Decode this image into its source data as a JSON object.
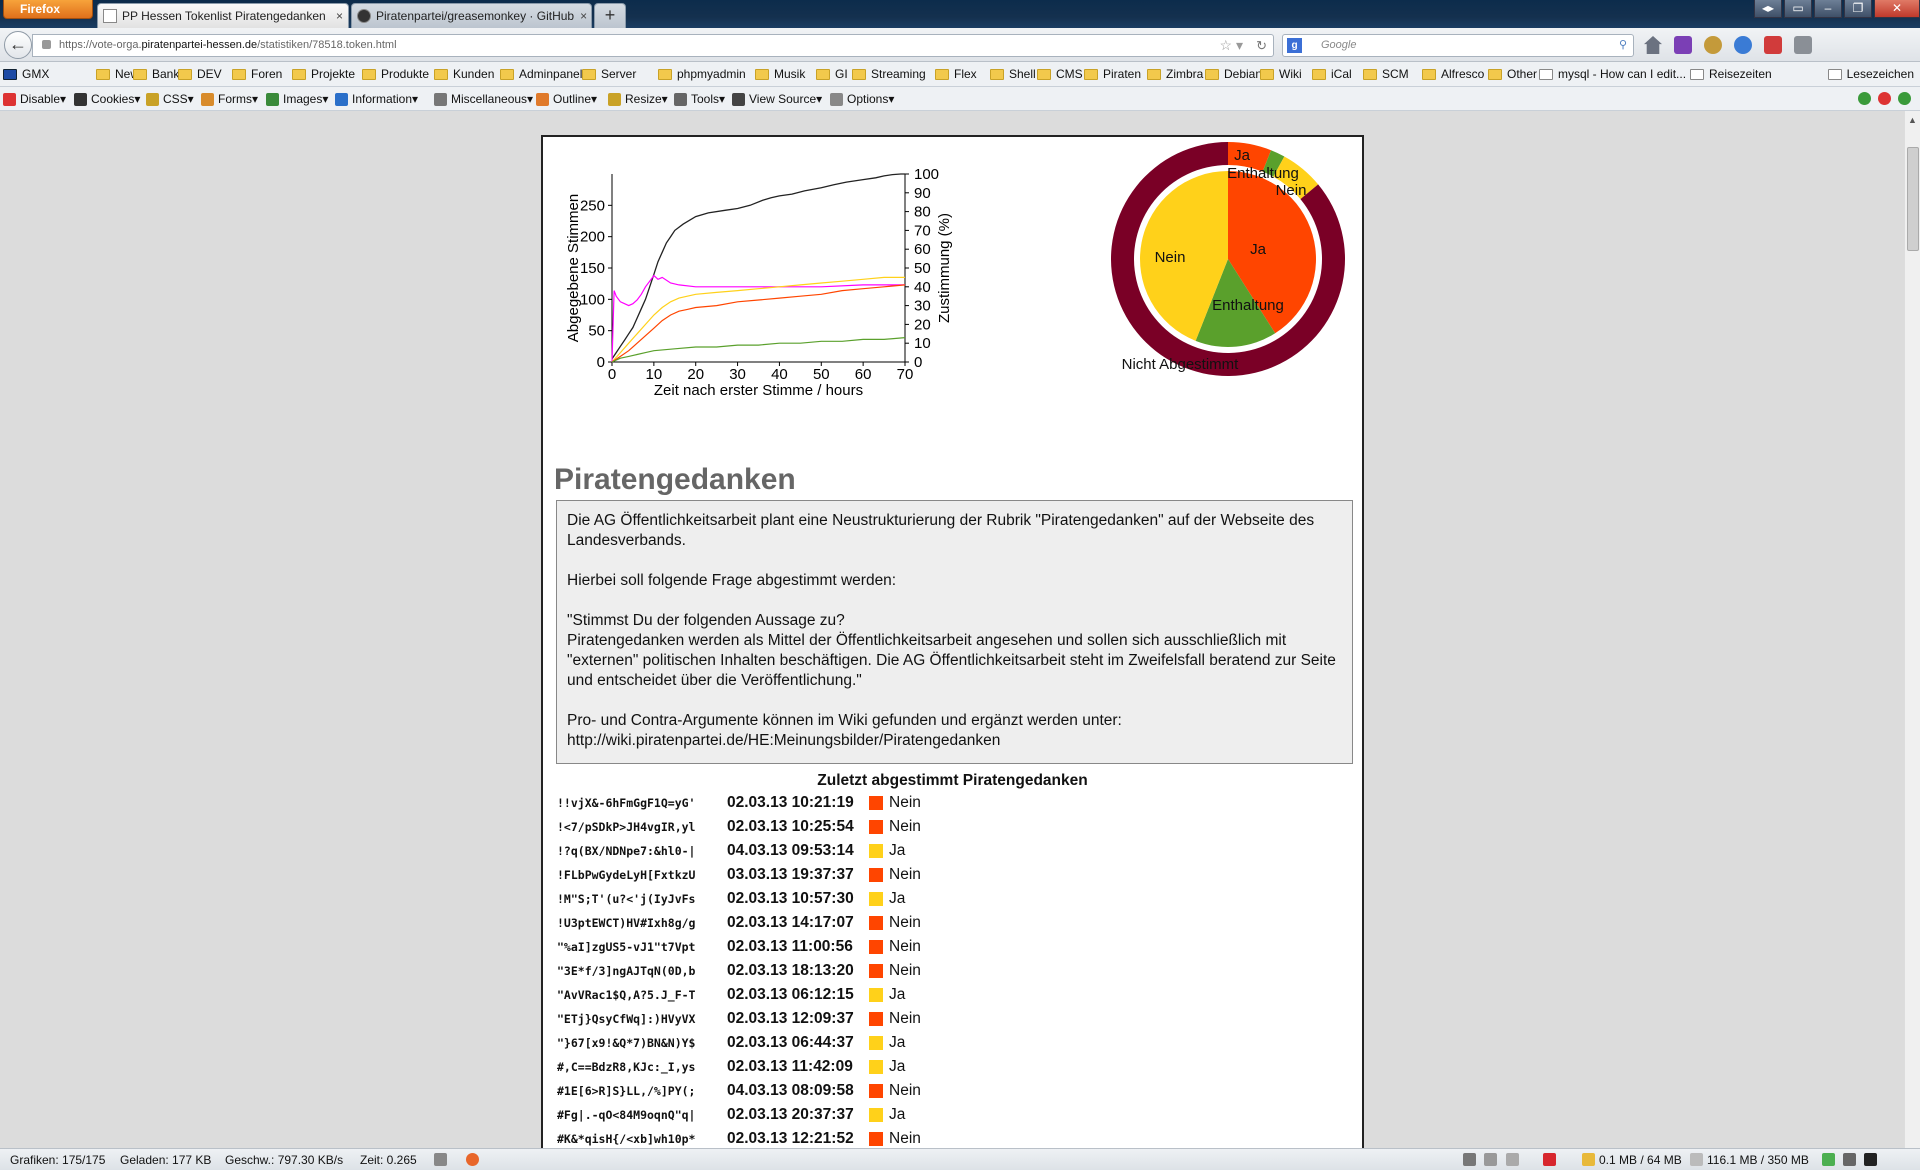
{
  "browser": {
    "app_button": "Firefox",
    "tabs": [
      {
        "title": "PP Hessen Tokenlist Piratengedanken",
        "close": "×"
      },
      {
        "title": "Piratenpartei/greasemonkey · GitHub",
        "close": "×"
      }
    ],
    "new_tab": "+",
    "url_prefix": "https://vote-orga.",
    "url_domain": "piratenpartei-hessen.de",
    "url_path": "/statistiken/78518.token.html",
    "search_placeholder": "Google"
  },
  "bookmarks": [
    "GMX",
    "News",
    "Bank",
    "DEV",
    "Foren",
    "Projekte",
    "Produkte",
    "Kunden",
    "Adminpanels",
    "Server",
    "phpmyadmin",
    "Musik",
    "GI",
    "Streaming",
    "Flex",
    "Shell",
    "CMS",
    "Piraten",
    "Zimbra",
    "Debian",
    "Wiki",
    "iCal",
    "SCM",
    "Alfresco",
    "Other",
    "mysql - How can I edit...",
    "Reisezeiten",
    "Lesezeichen"
  ],
  "devbar": [
    "Disable",
    "Cookies",
    "CSS",
    "Forms",
    "Images",
    "Information",
    "Miscellaneous",
    "Outline",
    "Resize",
    "Tools",
    "View Source",
    "Options"
  ],
  "page": {
    "title": "Piratengedanken",
    "description": {
      "p1": "Die AG Öffentlichkeitsarbeit plant eine Neustrukturierung der Rubrik \"Piratengedanken\" auf der Webseite des Landesverbands.",
      "p2": "Hierbei soll folgende Frage abgestimmt werden:",
      "p3a": "\"Stimmst Du der folgenden Aussage zu?",
      "p3b": "Piratengedanken werden als Mittel der Öffentlichkeitsarbeit angesehen und sollen sich ausschließlich mit \"externen\" politischen Inhalten beschäftigen. Die AG Öffentlichkeitsarbeit steht im Zweifelsfall beratend zur Seite und entscheidet über die Veröffentlichung.\"",
      "p4a": "Pro- und Contra-Argumente können im Wiki gefunden und ergänzt werden unter:",
      "p4b": "http://wiki.piratenpartei.de/HE:Meinungsbilder/Piratengedanken"
    },
    "list_heading": "Zuletzt abgestimmt Piratengedanken",
    "votes": [
      {
        "token": "!!vjX&-6hFmGgF1Q=yG'",
        "date": "02.03.13 10:21:19",
        "vote": "Nein"
      },
      {
        "token": "!<7/pSDkP>JH4vgIR,yl",
        "date": "02.03.13 10:25:54",
        "vote": "Nein"
      },
      {
        "token": "!?q(BX/NDNpe7:&hl0-|",
        "date": "04.03.13 09:53:14",
        "vote": "Ja"
      },
      {
        "token": "!FLbPwGydeLyH[FxtkzU",
        "date": "03.03.13 19:37:37",
        "vote": "Nein"
      },
      {
        "token": "!M\"S;T'(u?<'j(IyJvFs",
        "date": "02.03.13 10:57:30",
        "vote": "Ja"
      },
      {
        "token": "!U3ptEWCT)HV#Ixh8g/g",
        "date": "02.03.13 14:17:07",
        "vote": "Nein"
      },
      {
        "token": "\"%aI]zgUS5-vJ1\"t7Vpt",
        "date": "02.03.13 11:00:56",
        "vote": "Nein"
      },
      {
        "token": "\"3E*f/3]ngAJTqN(0D,b",
        "date": "02.03.13 18:13:20",
        "vote": "Nein"
      },
      {
        "token": "\"AvVRac1$Q,A?5.J_F-T",
        "date": "02.03.13 06:12:15",
        "vote": "Ja"
      },
      {
        "token": "\"ETj}QsyCfWq]:)HVyVX",
        "date": "02.03.13 12:09:37",
        "vote": "Nein"
      },
      {
        "token": "\"}67[x9!&Q*7)BN&N)Y$",
        "date": "02.03.13 06:44:37",
        "vote": "Ja"
      },
      {
        "token": "#,C==BdzR8,KJc:_I,ys",
        "date": "02.03.13 11:42:09",
        "vote": "Ja"
      },
      {
        "token": "#1E[6>R]S}LL,/%]PY(;",
        "date": "04.03.13 08:09:58",
        "vote": "Nein"
      },
      {
        "token": "#Fg|.-qO<84M9oqnQ\"q|",
        "date": "02.03.13 20:37:37",
        "vote": "Ja"
      },
      {
        "token": "#K&*qisH{/<xb]wh10p*",
        "date": "02.03.13 12:21:52",
        "vote": "Nein"
      }
    ],
    "vote_colors": {
      "Nein": "#ff4500",
      "Ja": "#ffd11a"
    }
  },
  "status": {
    "grafiken": "Grafiken: 175/175",
    "geladen": "Geladen: 177 KB",
    "geschw": "Geschw.: 797.30 KB/s",
    "zeit": "Zeit: 0.265",
    "mem1": "0.1 MB / 64 MB",
    "mem2": "116.1 MB / 350 MB"
  },
  "chart_data": [
    {
      "type": "line",
      "title": "",
      "xlabel": "Zeit nach erster Stimme / hours",
      "ylabel": "Abgegebene Stimmen",
      "y2label": "Zustimmung (%)",
      "xlim": [
        0,
        70
      ],
      "ylim": [
        0,
        300
      ],
      "y2lim": [
        0,
        100
      ],
      "x_ticks": [
        0,
        10,
        20,
        30,
        40,
        50,
        60,
        70
      ],
      "y_ticks": [
        0,
        50,
        100,
        150,
        200,
        250
      ],
      "y2_ticks": [
        0,
        10,
        20,
        30,
        40,
        50,
        60,
        70,
        80,
        90,
        100
      ],
      "series": [
        {
          "axis": "left",
          "color": "#222222",
          "x": [
            0,
            1,
            2,
            3,
            4,
            5,
            6,
            7,
            8,
            9,
            10,
            11,
            12,
            13,
            14,
            15,
            17,
            20,
            23,
            27,
            30,
            33,
            36,
            38,
            40,
            43,
            46,
            50,
            53,
            56,
            60,
            63,
            65,
            67,
            69,
            70
          ],
          "values": [
            5,
            15,
            25,
            35,
            45,
            55,
            70,
            85,
            100,
            120,
            140,
            160,
            175,
            190,
            200,
            210,
            220,
            232,
            238,
            242,
            245,
            250,
            258,
            262,
            265,
            268,
            273,
            278,
            283,
            287,
            291,
            294,
            297,
            299,
            300,
            300
          ]
        },
        {
          "axis": "right",
          "color": "#ff00ff",
          "x": [
            0,
            0.5,
            1,
            2,
            3,
            4,
            5,
            6,
            7,
            8,
            9,
            10,
            11,
            12,
            14,
            16,
            20,
            25,
            30,
            40,
            50,
            60,
            70
          ],
          "values": [
            0,
            38,
            35,
            32,
            31,
            30,
            31,
            33,
            36,
            40,
            43,
            46,
            44,
            45,
            42,
            41,
            40,
            40,
            40,
            40,
            40,
            41,
            41
          ]
        },
        {
          "axis": "right",
          "color": "#ffd11a",
          "x": [
            0,
            2,
            4,
            6,
            8,
            10,
            12,
            14,
            16,
            18,
            20,
            25,
            30,
            35,
            40,
            45,
            50,
            55,
            60,
            65,
            70
          ],
          "values": [
            0,
            5,
            10,
            15,
            20,
            25,
            29,
            32,
            34,
            35,
            36,
            37,
            38,
            39,
            40,
            41,
            42,
            43,
            44,
            45,
            45
          ]
        },
        {
          "axis": "right",
          "color": "#ff4500",
          "x": [
            0,
            2,
            4,
            6,
            8,
            10,
            12,
            14,
            16,
            18,
            20,
            25,
            30,
            35,
            40,
            45,
            50,
            55,
            60,
            65,
            70
          ],
          "values": [
            0,
            3,
            6,
            10,
            14,
            18,
            22,
            25,
            27,
            28,
            29,
            30,
            32,
            33,
            34,
            35,
            36,
            38,
            39,
            40,
            41
          ]
        },
        {
          "axis": "right",
          "color": "#5aa02c",
          "x": [
            0,
            2,
            4,
            6,
            8,
            10,
            15,
            20,
            25,
            30,
            35,
            40,
            45,
            50,
            55,
            60,
            65,
            70
          ],
          "values": [
            0,
            2,
            3,
            4,
            5,
            6,
            7,
            8,
            8,
            9,
            9,
            10,
            10,
            11,
            11,
            12,
            12,
            13
          ]
        }
      ]
    },
    {
      "type": "pie",
      "title": "",
      "inner": [
        {
          "label": "Ja",
          "value": 41,
          "color": "#ff4500"
        },
        {
          "label": "Enthaltung",
          "value": 15,
          "color": "#5aa02c"
        },
        {
          "label": "Nein",
          "value": 44,
          "color": "#ffd11a"
        }
      ],
      "outer": [
        {
          "label": "Ja",
          "value": 6,
          "color": "#ff4500"
        },
        {
          "label": "Enthaltung",
          "value": 2,
          "color": "#5aa02c"
        },
        {
          "label": "Nein",
          "value": 6,
          "color": "#ffd11a"
        },
        {
          "label": "Nicht Abgestimmt",
          "value": 86,
          "color": "#7a0026"
        }
      ],
      "labels": [
        "Ja",
        "Enthaltung",
        "Nein",
        "Nein",
        "Ja",
        "Enthaltung",
        "Nicht Abgestimmt"
      ]
    }
  ]
}
